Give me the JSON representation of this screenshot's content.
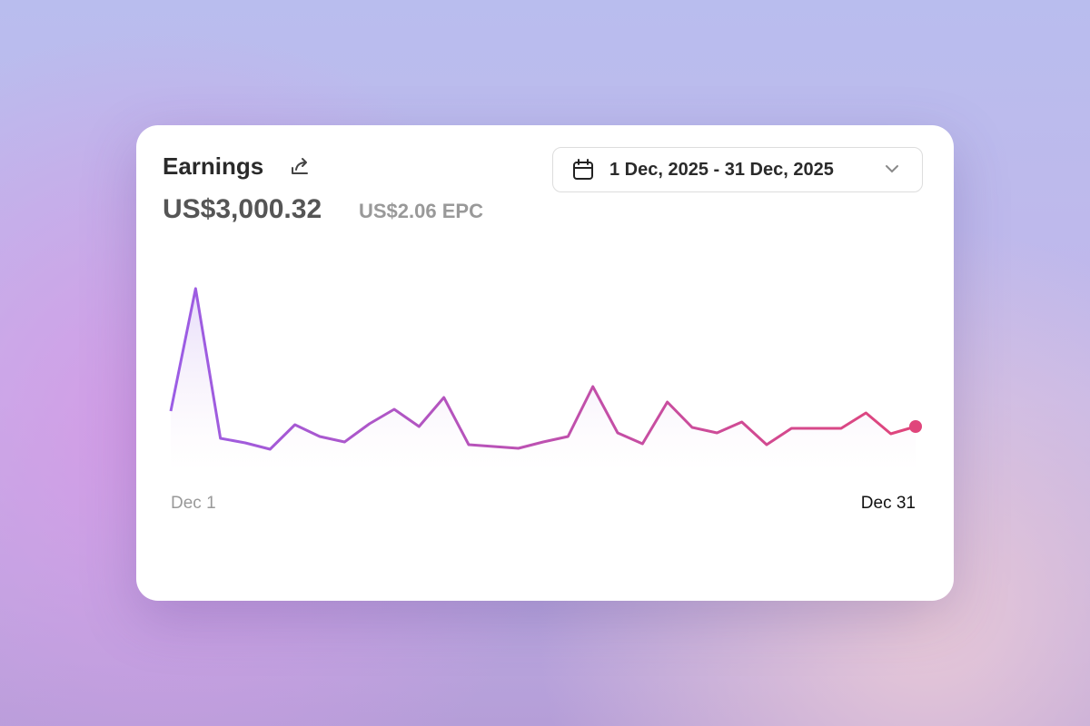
{
  "card": {
    "title": "Earnings",
    "total": "US$3,000.32",
    "epc": "US$2.06 EPC",
    "date_range": "1 Dec, 2025 - 31 Dec, 2025"
  },
  "chart_data": {
    "type": "line",
    "x": [
      "Dec 1",
      null,
      null,
      null,
      null,
      null,
      null,
      null,
      null,
      null,
      null,
      null,
      null,
      null,
      null,
      null,
      null,
      null,
      null,
      null,
      null,
      null,
      null,
      null,
      null,
      null,
      null,
      null,
      null,
      null,
      "Dec 31"
    ],
    "values": [
      67,
      202,
      37,
      32,
      25,
      52,
      39,
      33,
      53,
      69,
      50,
      82,
      30,
      28,
      26,
      33,
      39,
      94,
      43,
      31,
      77,
      49,
      43,
      55,
      30,
      48,
      48,
      48,
      65,
      42,
      50
    ],
    "ylim": [
      0,
      220
    ],
    "color_start": "#9b5de5",
    "color_end": "#e0457b"
  }
}
